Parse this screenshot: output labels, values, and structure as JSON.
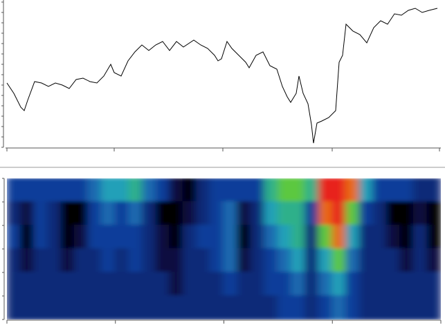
{
  "chart_data": [
    {
      "type": "line",
      "color": "#000000",
      "x": [
        10,
        20,
        30,
        35,
        40,
        50,
        60,
        70,
        80,
        90,
        100,
        110,
        120,
        130,
        140,
        150,
        160,
        165,
        175,
        185,
        195,
        205,
        215,
        225,
        235,
        245,
        255,
        265,
        280,
        290,
        300,
        310,
        315,
        320,
        328,
        335,
        345,
        355,
        360,
        370,
        380,
        390,
        400,
        408,
        415,
        420,
        428,
        432,
        438,
        445,
        450,
        453,
        458,
        465,
        475,
        485,
        490,
        495,
        500,
        510,
        520,
        530,
        540,
        550,
        560,
        570,
        580,
        590,
        600,
        610,
        620,
        632
      ],
      "values": [
        93,
        78,
        58,
        53,
        68,
        95,
        93,
        88,
        93,
        90,
        85,
        98,
        100,
        95,
        93,
        103,
        120,
        108,
        103,
        125,
        138,
        148,
        140,
        148,
        153,
        140,
        153,
        145,
        155,
        148,
        143,
        133,
        125,
        128,
        153,
        143,
        133,
        123,
        115,
        133,
        138,
        118,
        113,
        88,
        73,
        65,
        78,
        103,
        78,
        63,
        33,
        6,
        35,
        38,
        43,
        53,
        123,
        133,
        178,
        168,
        163,
        151,
        173,
        183,
        178,
        193,
        191,
        198,
        201,
        195,
        198,
        201
      ],
      "xlim": [
        8,
        637
      ],
      "ylim": [
        0,
        213
      ],
      "xticks": [
        10,
        165,
        322,
        480,
        635
      ],
      "yticks": [
        0,
        15,
        30,
        45,
        60,
        75,
        90,
        105,
        120,
        135,
        150,
        165,
        180,
        195,
        210
      ]
    },
    {
      "type": "heatmap",
      "colormap": [
        "#000000",
        "#0a0f40",
        "#0d2a78",
        "#103c9a",
        "#1a6ab0",
        "#22a0b8",
        "#2fb08a",
        "#5cc840",
        "#e86a18",
        "#e8241a"
      ],
      "zlim": [
        0,
        9
      ],
      "xlim": [
        0,
        32
      ],
      "ylim": [
        0,
        6
      ],
      "xticks": [
        0,
        8,
        16,
        24,
        32
      ],
      "yticks": [
        0,
        1,
        2,
        3,
        4,
        5,
        6
      ],
      "z": [
        [
          3,
          3,
          3,
          3,
          3,
          3,
          4,
          5,
          5,
          6,
          4,
          3,
          1,
          0,
          2,
          3,
          3,
          3,
          3,
          6,
          7,
          7,
          6,
          9,
          9,
          8,
          5,
          3,
          3,
          3,
          2,
          2
        ],
        [
          2,
          1,
          3,
          2,
          0,
          0,
          3,
          4,
          3,
          4,
          2,
          0,
          0,
          1,
          2,
          3,
          4,
          1,
          2,
          5,
          6,
          6,
          3,
          8,
          9,
          7,
          3,
          2,
          0,
          0,
          1,
          0
        ],
        [
          3,
          0,
          3,
          2,
          0,
          1,
          3,
          3,
          3,
          3,
          2,
          1,
          0,
          2,
          3,
          3,
          4,
          0,
          2,
          4,
          5,
          6,
          2,
          7,
          8,
          5,
          2,
          2,
          1,
          0,
          2,
          0
        ],
        [
          2,
          1,
          2,
          2,
          1,
          2,
          2,
          3,
          2,
          3,
          2,
          1,
          1,
          2,
          2,
          3,
          4,
          1,
          2,
          3,
          4,
          5,
          2,
          5,
          7,
          4,
          2,
          2,
          2,
          1,
          2,
          1
        ],
        [
          2,
          2,
          2,
          2,
          2,
          2,
          2,
          2,
          2,
          2,
          2,
          2,
          1,
          2,
          2,
          2,
          3,
          2,
          2,
          3,
          3,
          4,
          2,
          4,
          5,
          3,
          2,
          2,
          2,
          2,
          2,
          2
        ],
        [
          2,
          2,
          2,
          2,
          2,
          2,
          2,
          2,
          2,
          2,
          2,
          2,
          2,
          2,
          2,
          2,
          2,
          2,
          2,
          2,
          3,
          3,
          2,
          3,
          4,
          3,
          2,
          2,
          2,
          2,
          2,
          2
        ]
      ]
    }
  ]
}
